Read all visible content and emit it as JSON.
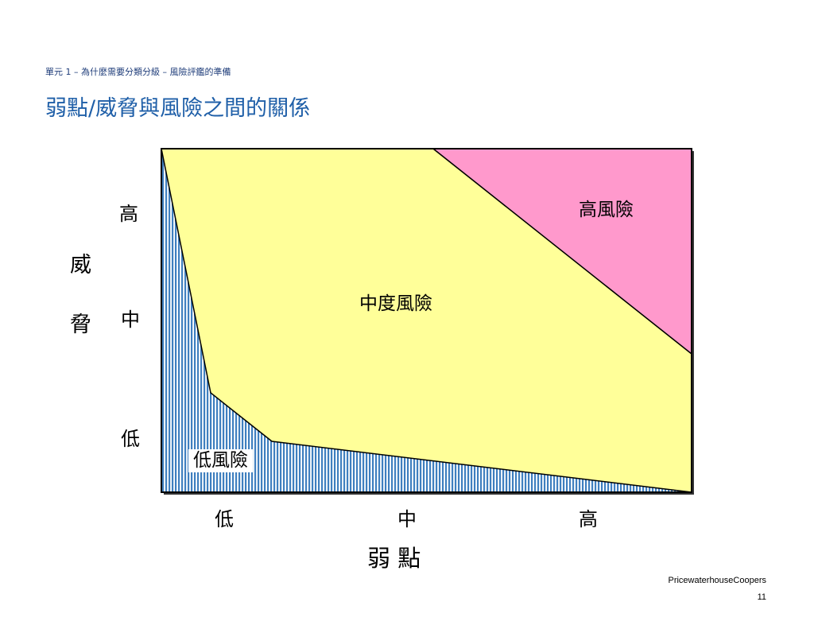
{
  "header": {
    "breadcrumb": "單元 1 – 為什麼需要分類分級 – 風險評鑑的準備",
    "title": "弱點/威脅與風險之間的關係"
  },
  "diagram": {
    "y_axis": {
      "title_1": "威",
      "title_2": "脅",
      "ticks": [
        "高",
        "中",
        "低"
      ]
    },
    "x_axis": {
      "title": "弱 點",
      "ticks": [
        "低",
        "中",
        "高"
      ]
    },
    "regions": {
      "high": {
        "label": "高風險",
        "color": "#ff99cc"
      },
      "medium": {
        "label": "中度風險",
        "color": "#ffff99"
      },
      "low": {
        "label": "低風險",
        "color": "#3f7fbf"
      }
    }
  },
  "footer": {
    "company": "PricewaterhouseCoopers",
    "page": "11"
  }
}
